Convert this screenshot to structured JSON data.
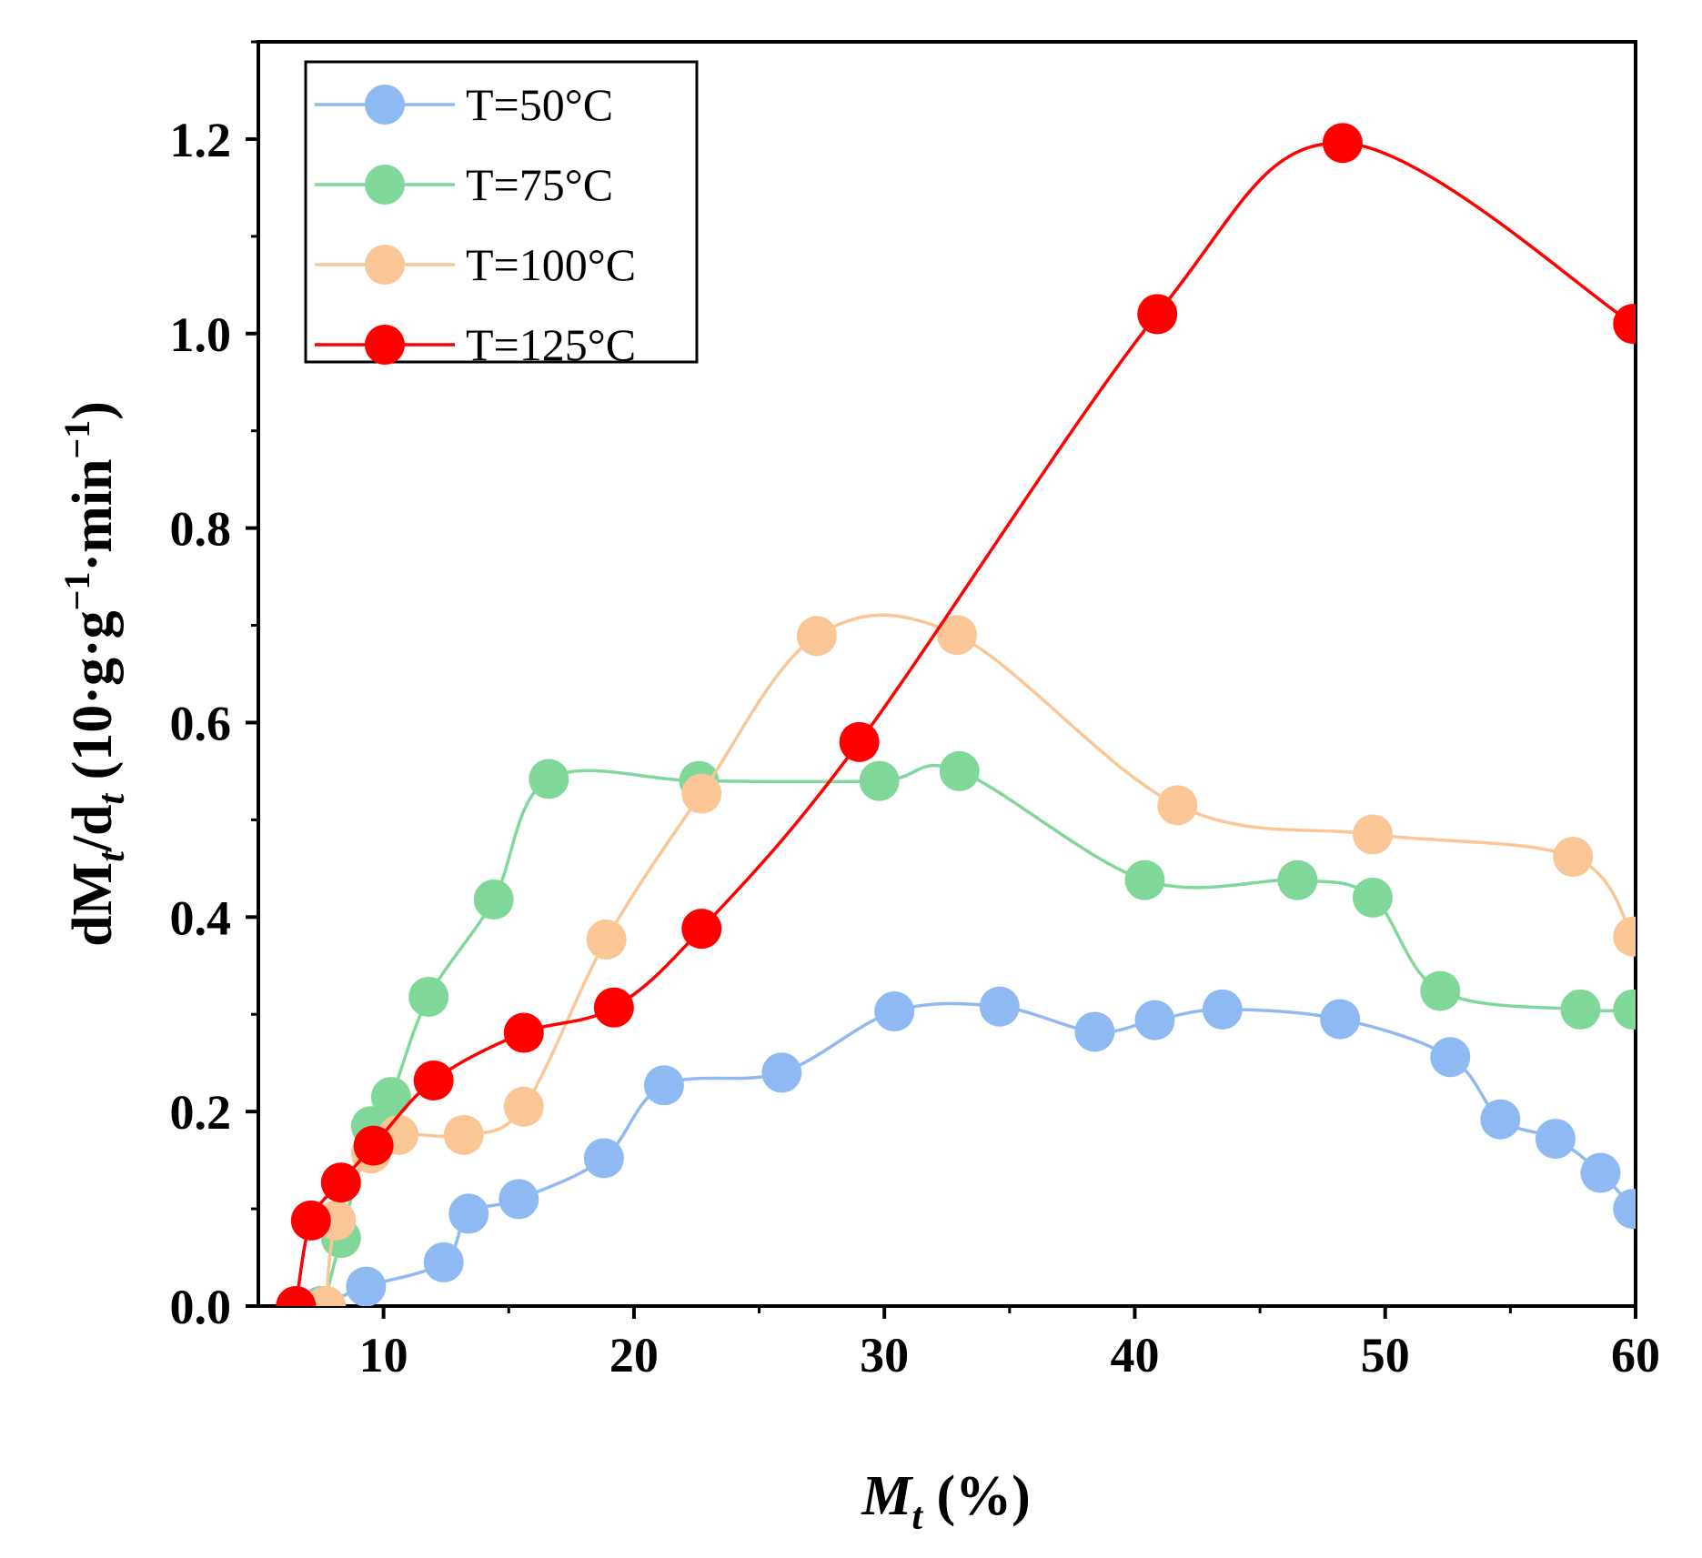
{
  "chart_data": {
    "type": "line",
    "title": "",
    "xlabel": {
      "main": "M",
      "sub": "t",
      "tail": " (%)"
    },
    "ylabel": {
      "p1": "dM",
      "p1sub": "t",
      "p2": "/d",
      "p2sub": "t",
      "p3": " (10·g·g",
      "sup1": "−1",
      "p4": "·min",
      "sup2": "−1",
      "p5": ")"
    },
    "xlim": [
      5,
      60
    ],
    "ylim": [
      0,
      1.3
    ],
    "xticks": [
      10,
      20,
      30,
      40,
      50,
      60
    ],
    "xtick_labels": [
      "10",
      "20",
      "30",
      "40",
      "50",
      "60"
    ],
    "yticks": [
      0,
      0.2,
      0.4,
      0.6,
      0.8,
      1.0,
      1.2
    ],
    "ytick_labels": [
      "0.0",
      "0.2",
      "0.4",
      "0.6",
      "0.8",
      "1.0",
      "1.2"
    ],
    "grid": false,
    "legend_position": "top-left",
    "series": [
      {
        "name": "T=50°C",
        "color": "#8fb9f2",
        "x": [
          7.5,
          9.3,
          12.4,
          13.4,
          15.4,
          18.8,
          21.2,
          25.9,
          30.4,
          34.6,
          38.4,
          40.8,
          43.5,
          48.2,
          52.6,
          54.6,
          56.8,
          58.6,
          59.9
        ],
        "y": [
          0.0,
          0.02,
          0.045,
          0.095,
          0.11,
          0.152,
          0.227,
          0.24,
          0.303,
          0.308,
          0.282,
          0.294,
          0.305,
          0.295,
          0.256,
          0.192,
          0.172,
          0.137,
          0.1
        ]
      },
      {
        "name": "T=75°C",
        "color": "#7fd89a",
        "x": [
          7.6,
          8.3,
          9.5,
          10.3,
          11.8,
          14.4,
          16.6,
          22.6,
          29.8,
          33.0,
          40.4,
          46.5,
          49.5,
          52.2,
          57.8,
          59.9
        ],
        "y": [
          0.0,
          0.07,
          0.185,
          0.215,
          0.318,
          0.418,
          0.542,
          0.54,
          0.54,
          0.55,
          0.438,
          0.438,
          0.42,
          0.324,
          0.305,
          0.305
        ]
      },
      {
        "name": "T=100°C",
        "color": "#fbc696",
        "x": [
          7.7,
          8.1,
          9.5,
          10.6,
          13.2,
          15.6,
          18.9,
          22.7,
          27.3,
          32.9,
          41.7,
          49.5,
          57.5,
          59.9
        ],
        "y": [
          0.0,
          0.088,
          0.157,
          0.176,
          0.176,
          0.205,
          0.377,
          0.527,
          0.689,
          0.69,
          0.515,
          0.485,
          0.462,
          0.38
        ]
      },
      {
        "name": "T=125°C",
        "color": "#ff0000",
        "x": [
          6.5,
          7.1,
          8.3,
          9.6,
          12.0,
          15.6,
          19.2,
          22.7,
          29.0,
          40.9,
          48.3,
          59.9
        ],
        "y": [
          0.0,
          0.088,
          0.127,
          0.165,
          0.232,
          0.281,
          0.307,
          0.388,
          0.58,
          1.02,
          1.196,
          1.01
        ]
      }
    ]
  }
}
